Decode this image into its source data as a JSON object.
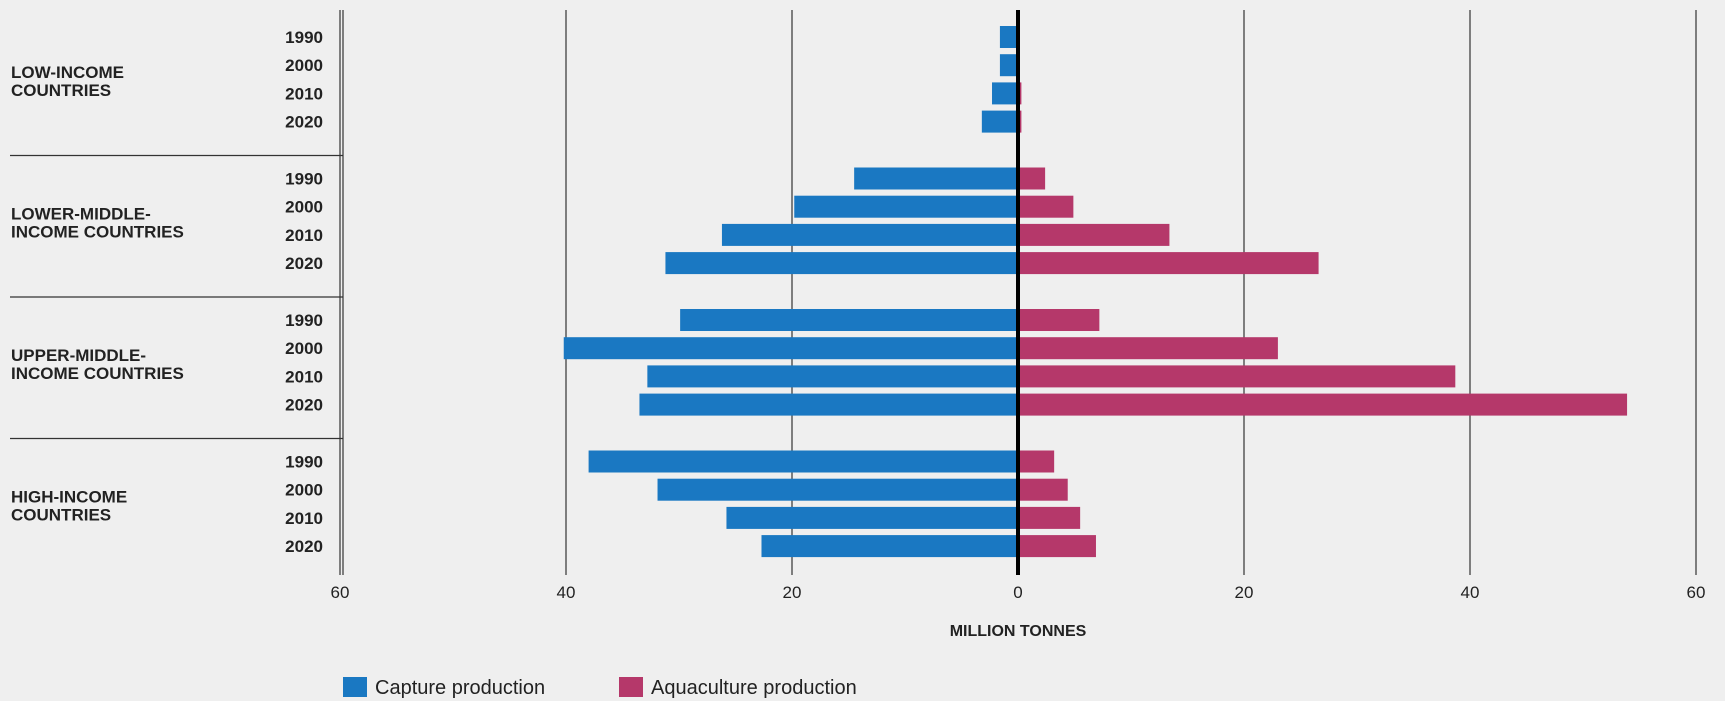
{
  "chart_data": {
    "type": "bar",
    "orientation": "horizontal-diverging",
    "xlabel": "MILLION TONNES",
    "xlim": [
      -60,
      60
    ],
    "xticks": [
      -60,
      -40,
      -20,
      0,
      20,
      40,
      60
    ],
    "xtick_labels": [
      "60",
      "40",
      "20",
      "0",
      "20",
      "40",
      "60"
    ],
    "grid": true,
    "legend_position": "bottom-left",
    "groups": [
      {
        "label": "LOW-INCOME COUNTRIES",
        "label_lines": [
          "LOW-INCOME",
          "COUNTRIES"
        ],
        "years": [
          "1990",
          "2000",
          "2010",
          "2020"
        ],
        "capture": [
          1.6,
          1.6,
          2.3,
          3.2
        ],
        "aquaculture": [
          0.1,
          0.1,
          0.3,
          0.3
        ]
      },
      {
        "label": "LOWER-MIDDLE-INCOME COUNTRIES",
        "label_lines": [
          "LOWER-MIDDLE-",
          "INCOME COUNTRIES"
        ],
        "years": [
          "1990",
          "2000",
          "2010",
          "2020"
        ],
        "capture": [
          14.5,
          19.8,
          26.2,
          31.2
        ],
        "aquaculture": [
          2.4,
          4.9,
          13.4,
          26.6
        ]
      },
      {
        "label": "UPPER-MIDDLE-INCOME COUNTRIES",
        "label_lines": [
          "UPPER-MIDDLE-",
          "INCOME COUNTRIES"
        ],
        "years": [
          "1990",
          "2000",
          "2010",
          "2020"
        ],
        "capture": [
          29.9,
          40.2,
          32.8,
          33.5
        ],
        "aquaculture": [
          7.2,
          23.0,
          38.7,
          53.9
        ]
      },
      {
        "label": "HIGH-INCOME COUNTRIES",
        "label_lines": [
          "HIGH-INCOME",
          "COUNTRIES"
        ],
        "years": [
          "1990",
          "2000",
          "2010",
          "2020"
        ],
        "capture": [
          38.0,
          31.9,
          25.8,
          22.7
        ],
        "aquaculture": [
          3.2,
          4.4,
          5.5,
          6.9
        ]
      }
    ],
    "series": [
      {
        "name": "Capture production",
        "color": "#1a78c2"
      },
      {
        "name": "Aquaculture production",
        "color": "#b5386a"
      }
    ]
  }
}
